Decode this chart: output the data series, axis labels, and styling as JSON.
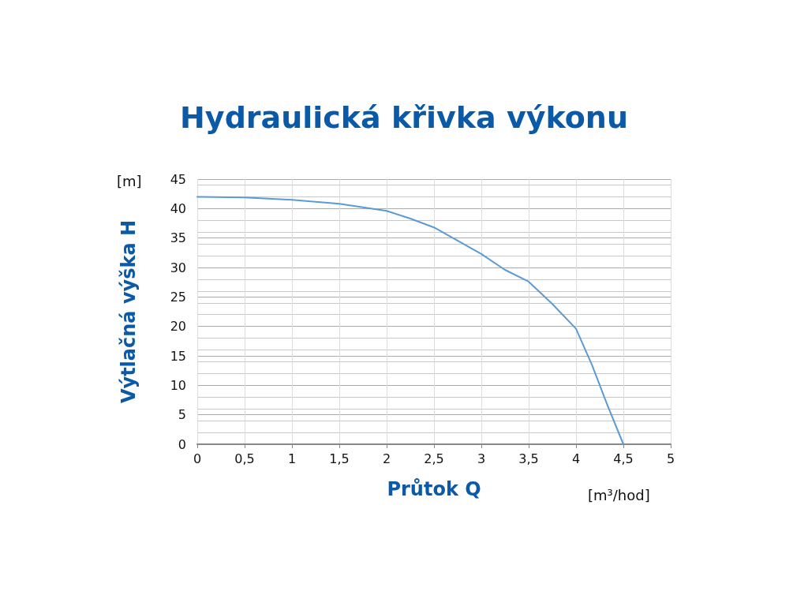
{
  "chart_data": {
    "type": "line",
    "title": "Hydraulická křivka výkonu",
    "xlabel": "Průtok Q",
    "ylabel": "Výtlačná výška H",
    "annotations": [
      "[m]",
      "[m³/hod]"
    ],
    "x": [
      0,
      0.5,
      1,
      1.5,
      2,
      2.25,
      2.5,
      3,
      3.25,
      3.5,
      3.75,
      4,
      4.17,
      4.33,
      4.5
    ],
    "series": [
      {
        "color": "#5b9bd5",
        "values": [
          42.0,
          41.9,
          41.5,
          40.8,
          39.6,
          38.3,
          36.8,
          32.3,
          29.6,
          27.6,
          23.8,
          19.6,
          13.4,
          6.7,
          0
        ]
      }
    ],
    "xlim": [
      0,
      5
    ],
    "xticks": [
      0,
      {
        "value": 0.5,
        "label": "0,5"
      },
      1,
      {
        "value": 1.5,
        "label": "1,5"
      },
      2,
      {
        "value": 2.5,
        "label": "2,5"
      },
      3,
      {
        "value": 3.5,
        "label": "3,5"
      },
      4,
      {
        "value": 4.5,
        "label": "4,5"
      },
      5
    ],
    "ylim": [
      0,
      45
    ],
    "yticks": [
      0,
      5,
      10,
      15,
      20,
      25,
      30,
      35,
      40,
      45
    ],
    "grid": true,
    "marker": "none",
    "line_style": "solid"
  }
}
